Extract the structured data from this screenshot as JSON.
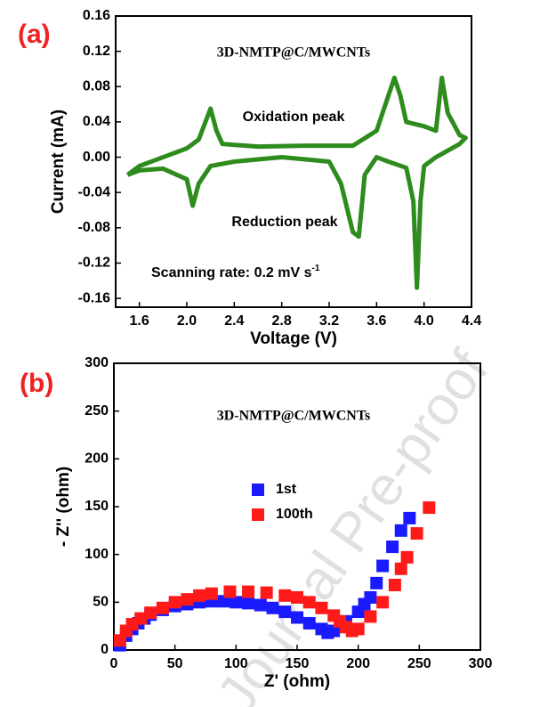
{
  "chart_data": [
    {
      "type": "line",
      "panel_label": "(a)",
      "title": "3D-NMTP@C/MWCNTs",
      "x_label": "Voltage (V)",
      "y_label": "Current (mA)",
      "annotations": [
        {
          "text": "Oxidation peak"
        },
        {
          "text": "Reduction peak"
        },
        {
          "text": "Scanning rate: 0.2 mV s",
          "superscript": "-1"
        }
      ],
      "xlim": [
        1.4,
        4.4
      ],
      "ylim": [
        -0.17,
        0.16
      ],
      "xticks": [
        1.6,
        {
          "value": 2.0,
          "label": "2.0"
        },
        2.4,
        2.8,
        3.2,
        3.6,
        {
          "value": 4.0,
          "label": "4.0"
        },
        4.4
      ],
      "yticks": [
        {
          "value": -0.16,
          "label": "-0.16"
        },
        {
          "value": -0.12,
          "label": "-0.12"
        },
        {
          "value": -0.08,
          "label": "-0.08"
        },
        {
          "value": -0.04,
          "label": "-0.04"
        },
        {
          "value": 0,
          "label": "0.00"
        },
        {
          "value": 0.04,
          "label": "0.04"
        },
        {
          "value": 0.08,
          "label": "0.08"
        },
        {
          "value": 0.12,
          "label": "0.12"
        },
        {
          "value": 0.16,
          "label": "0.16"
        }
      ],
      "series": [
        {
          "color": "#2e8b1e",
          "x": [
            1.5,
            1.6,
            1.8,
            2.0,
            2.1,
            2.2,
            2.25,
            2.3,
            2.6,
            3.0,
            3.4,
            3.6,
            3.7,
            3.75,
            3.8,
            3.85,
            4.0,
            4.1,
            4.15,
            4.2,
            4.3,
            4.35,
            4.3,
            4.1,
            4.0,
            3.97,
            3.94,
            3.91,
            3.85,
            3.7,
            3.6,
            3.5,
            3.45,
            3.4,
            3.3,
            3.2,
            2.8,
            2.4,
            2.2,
            2.1,
            2.05,
            2.0,
            1.8,
            1.6,
            1.5
          ],
          "values": [
            -0.02,
            -0.01,
            0.0,
            0.01,
            0.02,
            0.055,
            0.03,
            0.015,
            0.012,
            0.013,
            0.013,
            0.03,
            0.07,
            0.09,
            0.07,
            0.04,
            0.035,
            0.03,
            0.09,
            0.05,
            0.025,
            0.022,
            0.015,
            0.0,
            -0.01,
            -0.05,
            -0.148,
            -0.05,
            -0.012,
            -0.005,
            0.0,
            -0.02,
            -0.09,
            -0.085,
            -0.03,
            -0.005,
            0.0,
            -0.005,
            -0.01,
            -0.03,
            -0.055,
            -0.025,
            -0.013,
            -0.015,
            -0.02
          ]
        }
      ]
    },
    {
      "type": "scatter",
      "panel_label": "(b)",
      "title": "3D-NMTP@C/MWCNTs",
      "x_label": "Z' (ohm)",
      "y_label": "- Z'' (ohm)",
      "watermark": "Journal Pre-proof",
      "xlim": [
        0,
        300
      ],
      "ylim": [
        0,
        300
      ],
      "xticks": [
        0,
        50,
        100,
        150,
        200,
        250,
        300
      ],
      "yticks": [
        0,
        50,
        100,
        150,
        200,
        250,
        300
      ],
      "legend": "center",
      "series": [
        {
          "name": "1st",
          "color": "#1a1aff",
          "x": [
            5,
            10,
            15,
            20,
            25,
            30,
            40,
            50,
            60,
            70,
            80,
            90,
            100,
            110,
            120,
            130,
            140,
            150,
            160,
            170,
            175,
            180,
            190,
            200,
            205,
            210,
            215,
            220,
            228,
            235,
            242
          ],
          "values": [
            5,
            15,
            22,
            28,
            33,
            37,
            42,
            46,
            48,
            50,
            51,
            51,
            50,
            49,
            47,
            44,
            40,
            34,
            28,
            22,
            18,
            20,
            30,
            40,
            48,
            55,
            70,
            88,
            108,
            125,
            138
          ]
        },
        {
          "name": "100th",
          "color": "#ff1a1a",
          "x": [
            5,
            10,
            15,
            22,
            30,
            40,
            50,
            60,
            70,
            80,
            95,
            110,
            125,
            140,
            150,
            160,
            170,
            180,
            185,
            190,
            195,
            200,
            210,
            220,
            230,
            235,
            240,
            248,
            258
          ],
          "values": [
            10,
            20,
            27,
            33,
            39,
            44,
            50,
            53,
            57,
            59,
            61,
            61,
            60,
            57,
            55,
            50,
            44,
            36,
            30,
            24,
            20,
            22,
            35,
            50,
            68,
            85,
            97,
            122,
            149
          ]
        }
      ]
    }
  ]
}
